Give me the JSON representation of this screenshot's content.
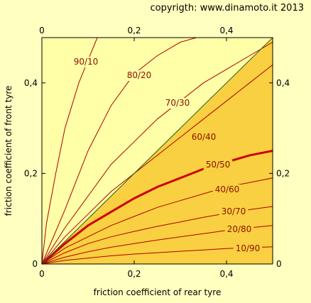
{
  "copyright": "copyrigth: www.dinamoto.it  2013",
  "colors": {
    "background": "#ffffc0",
    "plot_area": "#ffffa8",
    "shaded_region": "#f9d041",
    "curve": "#b00000",
    "main_curve": "#cc0000",
    "label": "#8a1000",
    "diagonal": "#2a5c1a"
  },
  "chart_data": {
    "type": "line",
    "xlabel": "friction coefficient of rear tyre",
    "ylabel": "friction coefficient of front tyre",
    "xlim": [
      0,
      0.5
    ],
    "ylim": [
      0,
      0.5
    ],
    "x_ticks": [
      "0",
      "0,2",
      "0,4"
    ],
    "y_ticks": [
      "0",
      "0,2",
      "0,4"
    ],
    "x_tick_values": [
      0,
      0.2,
      0.4
    ],
    "y_tick_values": [
      0,
      0.2,
      0.4
    ],
    "grid": false,
    "shaded_region": "below diagonal y = x",
    "diagonal": [
      [
        0,
        0
      ],
      [
        0.5,
        0.5
      ]
    ],
    "series": [
      {
        "name": "90/10",
        "x": [
          0,
          0.01,
          0.03,
          0.05,
          0.08,
          0.12
        ],
        "y": [
          0,
          0.09,
          0.2,
          0.3,
          0.4,
          0.5
        ]
      },
      {
        "name": "80/20",
        "x": [
          0,
          0.05,
          0.1,
          0.15,
          0.2,
          0.25,
          0.3,
          0.335
        ],
        "y": [
          0,
          0.12,
          0.25,
          0.35,
          0.42,
          0.46,
          0.49,
          0.5
        ]
      },
      {
        "name": "70/30",
        "x": [
          0,
          0.05,
          0.1,
          0.15,
          0.2,
          0.25,
          0.3,
          0.35,
          0.4,
          0.45,
          0.5
        ],
        "y": [
          0,
          0.08,
          0.15,
          0.22,
          0.27,
          0.32,
          0.36,
          0.4,
          0.43,
          0.46,
          0.49
        ]
      },
      {
        "name": "60/40",
        "x": [
          0,
          0.05,
          0.1,
          0.15,
          0.2,
          0.25,
          0.3,
          0.35,
          0.4,
          0.45,
          0.5
        ],
        "y": [
          0,
          0.06,
          0.11,
          0.16,
          0.2,
          0.24,
          0.28,
          0.32,
          0.36,
          0.4,
          0.44
        ]
      },
      {
        "name": "50/50",
        "x": [
          0,
          0.05,
          0.1,
          0.15,
          0.2,
          0.25,
          0.3,
          0.35,
          0.4,
          0.45,
          0.5
        ],
        "y": [
          0,
          0.045,
          0.085,
          0.115,
          0.145,
          0.17,
          0.19,
          0.21,
          0.225,
          0.24,
          0.25
        ]
      },
      {
        "name": "40/60",
        "x": [
          0,
          0.05,
          0.1,
          0.15,
          0.2,
          0.25,
          0.3,
          0.35,
          0.4,
          0.45,
          0.5
        ],
        "y": [
          0,
          0.035,
          0.06,
          0.085,
          0.105,
          0.125,
          0.14,
          0.155,
          0.17,
          0.18,
          0.19
        ]
      },
      {
        "name": "30/70",
        "x": [
          0,
          0.05,
          0.1,
          0.15,
          0.2,
          0.25,
          0.3,
          0.35,
          0.4,
          0.45,
          0.5
        ],
        "y": [
          0,
          0.025,
          0.045,
          0.06,
          0.072,
          0.083,
          0.093,
          0.103,
          0.112,
          0.12,
          0.127
        ]
      },
      {
        "name": "20/80",
        "x": [
          0,
          0.05,
          0.1,
          0.15,
          0.2,
          0.25,
          0.3,
          0.35,
          0.4,
          0.45,
          0.5
        ],
        "y": [
          0,
          0.015,
          0.027,
          0.037,
          0.045,
          0.053,
          0.06,
          0.067,
          0.074,
          0.08,
          0.085
        ]
      },
      {
        "name": "10/90",
        "x": [
          0,
          0.05,
          0.1,
          0.15,
          0.2,
          0.25,
          0.3,
          0.35,
          0.4,
          0.45,
          0.5
        ],
        "y": [
          0,
          0.008,
          0.013,
          0.018,
          0.022,
          0.025,
          0.028,
          0.031,
          0.034,
          0.036,
          0.038
        ]
      }
    ]
  }
}
